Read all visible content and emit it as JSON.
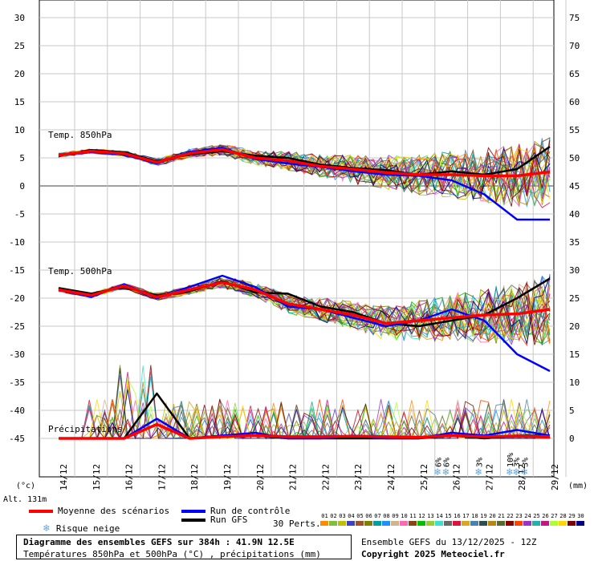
{
  "chart_data": [
    {
      "type": "line",
      "title": "Temp. 850hPa",
      "ylim_left": [
        -15,
        35
      ],
      "left_ticks": [
        30,
        25,
        20,
        15,
        10,
        5,
        0,
        -5,
        -10
      ],
      "x": [
        "14/12",
        "15/12",
        "16/12",
        "17/12",
        "18/12",
        "19/12",
        "20/12",
        "21/12",
        "22/12",
        "23/12",
        "24/12",
        "25/12",
        "26/12",
        "27/12",
        "28/12",
        "29/12"
      ],
      "series": [
        {
          "name": "Moyenne des scénarios",
          "color": "#ff0000",
          "values": [
            5.5,
            6.2,
            5.8,
            4.2,
            5.8,
            6.5,
            5.0,
            4.5,
            3.5,
            3.0,
            2.4,
            2.0,
            2.0,
            1.8,
            1.8,
            2.5
          ]
        },
        {
          "name": "Run de contrôle",
          "color": "#0000ff",
          "values": [
            5.6,
            6.0,
            5.6,
            4.0,
            6.0,
            6.8,
            4.8,
            4.0,
            3.4,
            2.6,
            2.0,
            1.8,
            1.0,
            -1.5,
            -6.0,
            -6.0
          ]
        },
        {
          "name": "Run GFS",
          "color": "#000000",
          "values": [
            5.4,
            6.4,
            6.0,
            4.4,
            5.6,
            6.2,
            5.4,
            5.0,
            3.8,
            3.2,
            2.8,
            2.0,
            2.6,
            2.0,
            3.0,
            7.0
          ]
        }
      ]
    },
    {
      "type": "line",
      "title": "Temp. 500hPa",
      "series": [
        {
          "name": "Moyenne des scénarios",
          "color": "#ff0000",
          "values": [
            -18.5,
            -19.5,
            -17.8,
            -19.8,
            -18.5,
            -17.2,
            -18.5,
            -21.0,
            -22.0,
            -23.0,
            -24.5,
            -24.0,
            -23.5,
            -23.0,
            -22.8,
            -22.0
          ]
        },
        {
          "name": "Run de contrôle",
          "color": "#0000ff",
          "values": [
            -18.5,
            -19.8,
            -17.5,
            -20.0,
            -18.0,
            -16.0,
            -18.0,
            -21.5,
            -22.0,
            -23.5,
            -25.0,
            -24.0,
            -22.0,
            -24.0,
            -30.0,
            -33.0
          ]
        },
        {
          "name": "Run GFS",
          "color": "#000000",
          "values": [
            -18.2,
            -19.2,
            -18.0,
            -19.5,
            -18.8,
            -17.0,
            -19.0,
            -19.2,
            -21.5,
            -22.5,
            -24.5,
            -25.0,
            -24.0,
            -23.0,
            -20.0,
            -16.5
          ]
        }
      ]
    },
    {
      "type": "line",
      "title": "Précipitations",
      "unit": "(mm)",
      "ylim_right": [
        0,
        78
      ],
      "right_ticks": [
        75,
        70,
        65,
        60,
        55,
        50,
        45,
        40,
        35,
        30,
        25,
        20,
        15,
        10,
        5,
        0
      ],
      "series": [
        {
          "name": "Moyenne des scénarios",
          "color": "#ff0000",
          "values": [
            0,
            0,
            0,
            2.5,
            0,
            0.3,
            0.5,
            0.3,
            0.3,
            0.4,
            0.3,
            0.2,
            0.5,
            0.3,
            0.4,
            0.3
          ]
        },
        {
          "name": "Run de contrôle",
          "color": "#0000ff",
          "values": [
            0,
            0,
            0,
            3.5,
            0,
            0.5,
            1.0,
            0,
            0,
            0.5,
            0,
            0,
            1.0,
            0.5,
            1.5,
            0.5
          ]
        },
        {
          "name": "Run GFS",
          "color": "#000000",
          "values": [
            0,
            0,
            0,
            8.0,
            0,
            0.5,
            0.5,
            0,
            0,
            0,
            0,
            0,
            0.5,
            0,
            0.5,
            0.5
          ]
        }
      ]
    }
  ],
  "axes": {
    "left_unit": "(°c)",
    "right_unit": "(mm)",
    "altitude": "Alt. 131m"
  },
  "snow_risk": [
    {
      "date_index": 11.6,
      "label": "6%"
    },
    {
      "date_index": 11.85,
      "label": "6%"
    },
    {
      "date_index": 12.85,
      "label": "3%"
    },
    {
      "date_index": 13.8,
      "label": "10%"
    },
    {
      "date_index": 14.0,
      "label": "3%"
    },
    {
      "date_index": 14.25,
      "label": "3%"
    }
  ],
  "legend": {
    "mean": "Moyenne des scénarios",
    "control": "Run de contrôle",
    "gfs": "Run GFS",
    "snow": "Risque neige",
    "perts_label": "30 Perts.",
    "perts": [
      "01",
      "02",
      "03",
      "04",
      "05",
      "06",
      "07",
      "08",
      "09",
      "10",
      "11",
      "12",
      "13",
      "14",
      "15",
      "16",
      "17",
      "18",
      "19",
      "20",
      "21",
      "22",
      "23",
      "24",
      "25",
      "26",
      "27",
      "28",
      "29",
      "30"
    ],
    "pert_colors": [
      "#ff8c00",
      "#7fbf3f",
      "#c0c000",
      "#4040c0",
      "#a0522d",
      "#808000",
      "#00a0a0",
      "#1e90ff",
      "#d2b48c",
      "#ff69b4",
      "#8b4513",
      "#00c000",
      "#9acd32",
      "#40e0d0",
      "#696969",
      "#dc143c",
      "#daa520",
      "#4682b4",
      "#2f4f4f",
      "#b8860b",
      "#556b2f",
      "#8b0000",
      "#ff4500",
      "#9932cc",
      "#20b2aa",
      "#c71585",
      "#adff2f",
      "#ffd700",
      "#800000",
      "#000080"
    ]
  },
  "footer": {
    "title": "Diagramme des ensembles GEFS sur 384h : 41.9N 12.5E",
    "subtitle": "Températures 850hPa et 500hPa (°C) , précipitations (mm)",
    "run_info": "Ensemble GEFS du 13/12/2025 - 12Z",
    "copyright": "Copyright 2025 Meteociel.fr"
  }
}
